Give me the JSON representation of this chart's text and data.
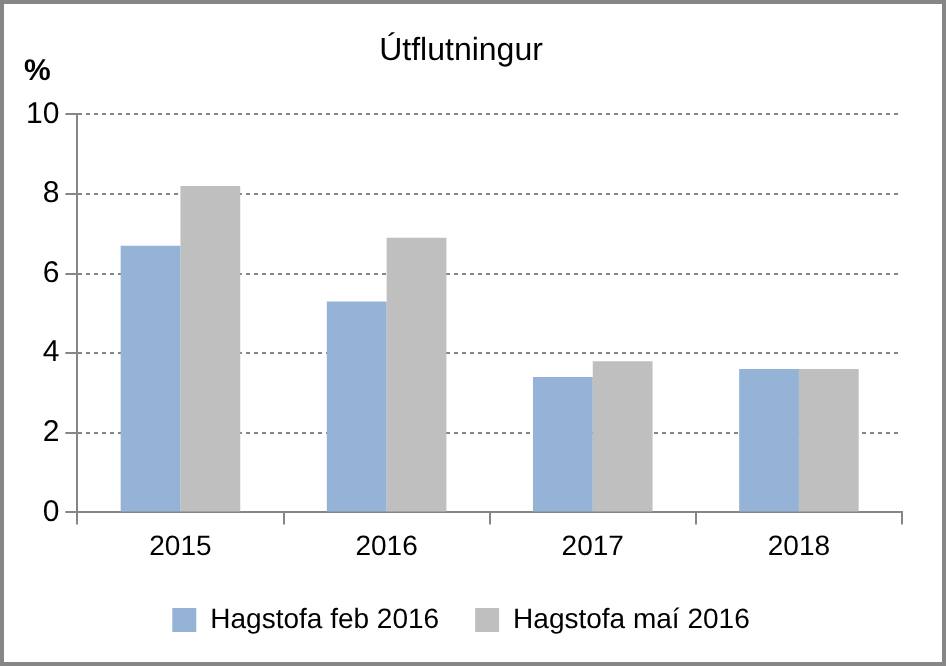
{
  "chart_data": {
    "type": "bar",
    "title": "Útflutningur",
    "ylabel": "%",
    "categories": [
      "2015",
      "2016",
      "2017",
      "2018"
    ],
    "series": [
      {
        "name": "Hagstofa feb 2016",
        "color": "#95b3d7",
        "values": [
          6.7,
          5.3,
          3.4,
          3.6
        ]
      },
      {
        "name": "Hagstofa maí 2016",
        "color": "#bfbfbf",
        "values": [
          8.2,
          6.9,
          3.8,
          3.6
        ]
      }
    ],
    "ylim": [
      0,
      10
    ],
    "yticks": [
      0,
      2,
      4,
      6,
      8,
      10
    ],
    "grid": "y",
    "legend": "bottom"
  }
}
